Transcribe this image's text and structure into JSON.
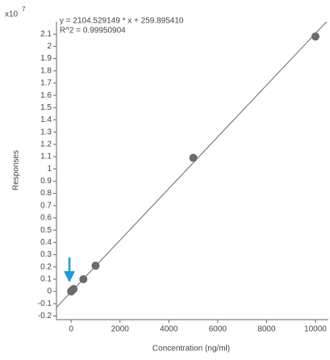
{
  "chart_data": {
    "type": "scatter",
    "equation": "y = 2104.529149 * x  + 259.895410",
    "r_squared": "R^2 = 0.99950904",
    "y_multiplier": "x10",
    "y_multiplier_exponent": "7",
    "xlabel": "Concentration (ng/ml)",
    "ylabel": "Responses",
    "x": [
      0,
      5,
      10,
      20,
      50,
      100,
      500,
      1000,
      5000,
      10000
    ],
    "values": [
      0,
      0.001,
      0.002,
      0.004,
      0.01,
      0.02,
      0.1,
      0.21,
      1.09,
      2.08
    ],
    "color": "#6b6b6b",
    "fit_line": {
      "x": [
        -600,
        10500
      ],
      "values": [
        -0.13,
        2.21
      ],
      "color": "#666666"
    },
    "xlim": [
      -600,
      10530
    ],
    "ylim": [
      -0.23,
      2.2
    ],
    "xticks": [
      0,
      2000,
      4000,
      6000,
      8000,
      10000
    ],
    "yticks": [
      -0.2,
      -0.1,
      0,
      0.1,
      0.2,
      0.3,
      0.4,
      0.5,
      0.6,
      0.7,
      0.8,
      0.9,
      1,
      1.1,
      1.2,
      1.3,
      1.4,
      1.5,
      1.6,
      1.7,
      1.8,
      1.9,
      2,
      2.1
    ],
    "grid": false
  }
}
